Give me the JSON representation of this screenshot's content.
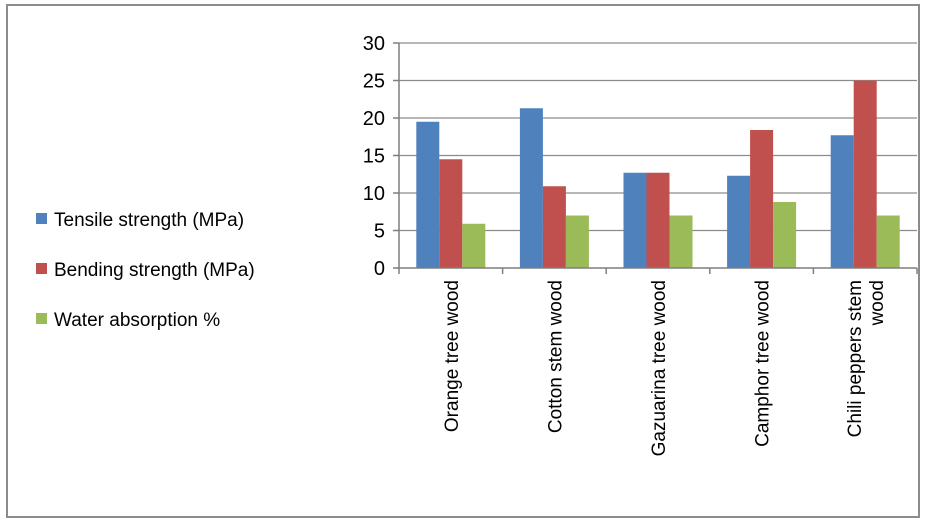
{
  "chart_data": {
    "type": "bar",
    "title": "",
    "xlabel": "",
    "ylabel": "",
    "categories": [
      [
        "Orange tree wood"
      ],
      [
        "Cotton stem wood"
      ],
      [
        "Gazuarina tree wood"
      ],
      [
        "Camphor tree wood"
      ],
      [
        "Chili peppers stem",
        "wood"
      ]
    ],
    "series": [
      {
        "name": "Tensile strength (MPa)",
        "color": "#4f81bd",
        "values": [
          19.5,
          21.3,
          12.7,
          12.3,
          17.7
        ]
      },
      {
        "name": "Bending strength (MPa)",
        "color": "#c0504d",
        "values": [
          14.5,
          10.9,
          12.7,
          18.4,
          25.0
        ]
      },
      {
        "name": "Water absorption %",
        "color": "#9bbb59",
        "values": [
          5.9,
          7.0,
          7.0,
          8.8,
          7.0
        ]
      }
    ],
    "ylim": [
      0,
      30
    ],
    "yticks": [
      0,
      5,
      10,
      15,
      20,
      25,
      30
    ],
    "grid": true,
    "legend_position": "left"
  }
}
